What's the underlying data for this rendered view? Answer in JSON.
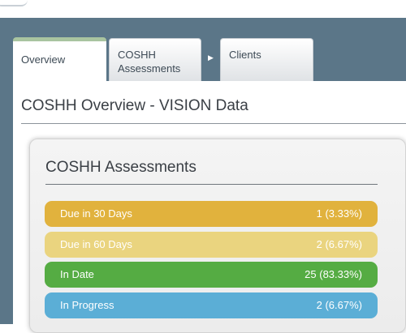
{
  "tabs": {
    "overview": "Overview",
    "coshh": "COSHH Assessments",
    "clients": "Clients"
  },
  "icons": {
    "tab_separator": "caret-right-icon"
  },
  "page": {
    "title": "COSHH Overview - VISION Data"
  },
  "card": {
    "title": "COSHH Assessments",
    "rows": [
      {
        "label": "Due in 30 Days",
        "value": "1 (3.33%)",
        "color": "#e1b23d"
      },
      {
        "label": "Due in 60 Days",
        "value": "2 (6.67%)",
        "color": "#ead47f"
      },
      {
        "label": "In Date",
        "value": "25 (83.33%)",
        "color": "#55ac43"
      },
      {
        "label": "In Progress",
        "value": "2 (6.67%)",
        "color": "#5baed6"
      }
    ]
  },
  "colors": {
    "header_band": "#5b7688",
    "active_tab_accent": "#a9c4a0"
  }
}
